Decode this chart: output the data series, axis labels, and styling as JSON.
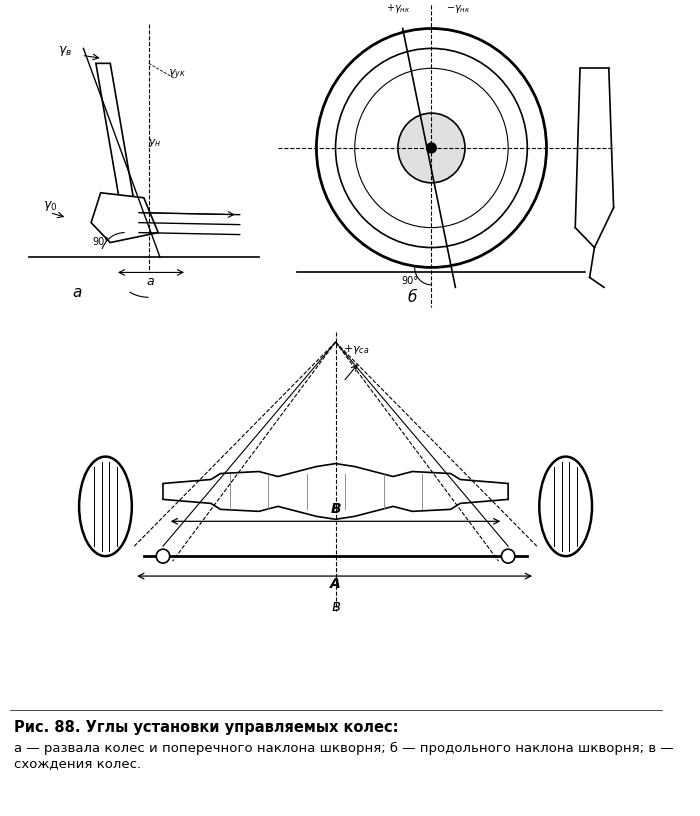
{
  "title": "",
  "caption_bold": "Рис. 88. Углы установки управляемых колес:",
  "caption_normal": "а — развала колес и поперечного наклона шкворня; б — продольного наклона шкворня; в — схождения колес.",
  "bg_color": "#ffffff",
  "line_color": "#000000",
  "label_a": "а",
  "label_b_top": "б",
  "label_b_bottom": "в",
  "label_A": "А",
  "label_B": "В",
  "label_gamma_v": "γв",
  "label_gamma_uk": "γук",
  "label_y_n": "ун",
  "label_90": "90°",
  "label_a_arrow": "а",
  "label_gamma_ca": "+γса"
}
